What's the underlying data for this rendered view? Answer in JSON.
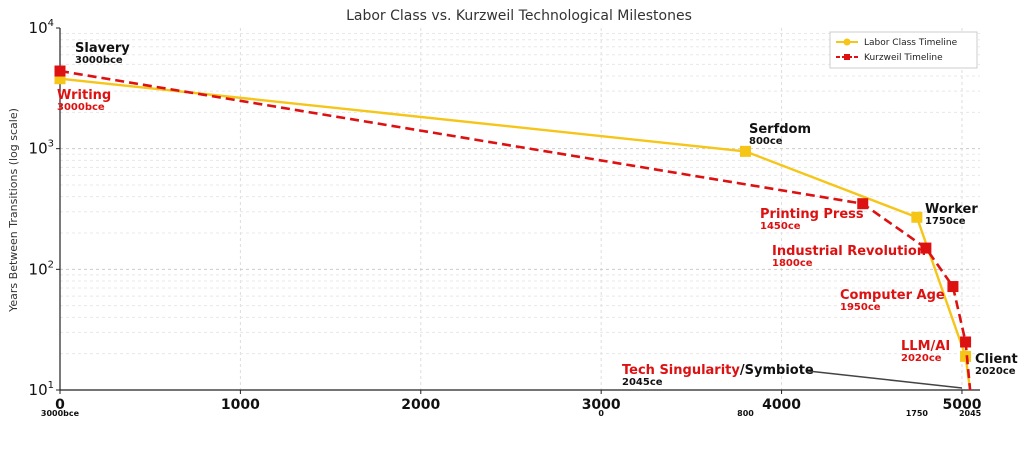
{
  "chart_data": {
    "type": "line",
    "title": "Labor Class vs. Kurzweil Technological Milestones",
    "xlabel": "",
    "ylabel": "Years Between Transitions (log scale)",
    "xlim": [
      0,
      5100
    ],
    "ylim": [
      10,
      10000
    ],
    "yscale": "log",
    "xticks": [
      "0",
      "1000",
      "2000",
      "3000",
      "4000",
      "5000"
    ],
    "xtick_values": [
      0,
      1000,
      2000,
      3000,
      4000,
      5000
    ],
    "xsub_labels": [
      {
        "text": "3000bce",
        "x": 0
      },
      {
        "text": "0",
        "x": 3000
      },
      {
        "text": "800",
        "x": 3800
      },
      {
        "text": "1750",
        "x": 4750
      },
      {
        "text": "2045",
        "x": 5045
      }
    ],
    "yticks": [
      {
        "base": "10",
        "exp": "1",
        "value": 10
      },
      {
        "base": "10",
        "exp": "2",
        "value": 100
      },
      {
        "base": "10",
        "exp": "3",
        "value": 1000
      },
      {
        "base": "10",
        "exp": "4",
        "value": 10000
      }
    ],
    "grid": true,
    "legend_position": "top-right",
    "series": [
      {
        "name": "Labor Class Timeline",
        "color": "#f5c518",
        "style": "solid",
        "marker": "square",
        "points": [
          {
            "x": 0,
            "y": 3800
          },
          {
            "x": 3800,
            "y": 950
          },
          {
            "x": 4750,
            "y": 270
          },
          {
            "x": 5020,
            "y": 19
          },
          {
            "x": 5045,
            "y": 10
          }
        ]
      },
      {
        "name": "Kurzweil Timeline",
        "color": "#dd1111",
        "style": "dashed",
        "marker": "square",
        "points": [
          {
            "x": 0,
            "y": 4400
          },
          {
            "x": 4450,
            "y": 350
          },
          {
            "x": 4800,
            "y": 150
          },
          {
            "x": 4950,
            "y": 72
          },
          {
            "x": 5020,
            "y": 25
          },
          {
            "x": 5045,
            "y": 10
          }
        ]
      }
    ],
    "annotations": [
      {
        "name": "Slavery",
        "date": "3000bce",
        "color": "#111111"
      },
      {
        "name": "Writing",
        "date": "3000bce",
        "color": "#dd1111"
      },
      {
        "name": "Serfdom",
        "date": "800ce",
        "color": "#111111"
      },
      {
        "name": "Printing Press",
        "date": "1450ce",
        "color": "#dd1111"
      },
      {
        "name": "Worker",
        "date": "1750ce",
        "color": "#111111"
      },
      {
        "name": "Industrial Revolution",
        "date": "1800ce",
        "color": "#dd1111"
      },
      {
        "name": "Computer Age",
        "date": "1950ce",
        "color": "#dd1111"
      },
      {
        "name": "LLM/AI",
        "date": "2020ce",
        "color": "#dd1111"
      },
      {
        "name": "Client",
        "date": "2020ce",
        "color": "#111111"
      },
      {
        "name_part1": "Tech Singularity",
        "sep": "/",
        "name_part2": "Symbiote",
        "date": "2045ce",
        "color": "#dd1111"
      }
    ]
  }
}
